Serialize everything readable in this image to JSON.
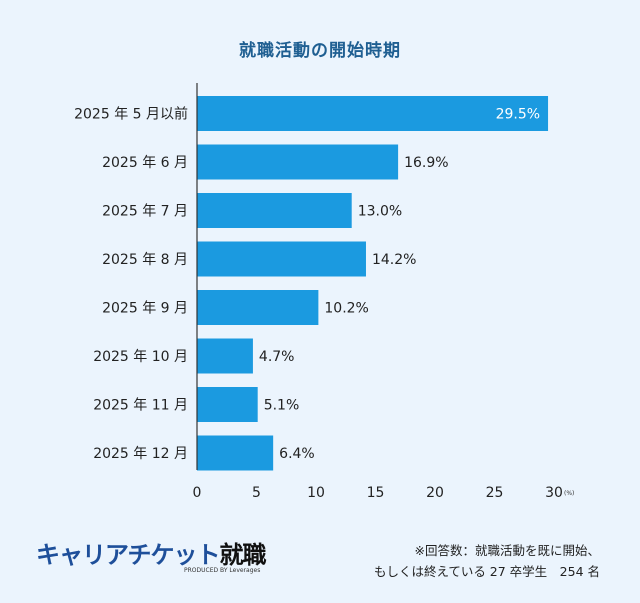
{
  "chart_data": {
    "type": "bar",
    "orientation": "horizontal",
    "title": "就職活動の開始時期",
    "categories": [
      "2025 年 5 月以前",
      "2025 年 6 月",
      "2025 年 7 月",
      "2025 年 8 月",
      "2025 年 9 月",
      "2025 年 10 月",
      "2025 年 11 月",
      "2025 年 12 月"
    ],
    "values": [
      29.5,
      16.9,
      13.0,
      14.2,
      10.2,
      4.7,
      5.1,
      6.4
    ],
    "data_labels": [
      "29.5%",
      "16.9%",
      "13.0%",
      "14.2%",
      "10.2%",
      "4.7%",
      "5.1%",
      "6.4%"
    ],
    "xlim": [
      0,
      30
    ],
    "xticks": [
      "0",
      "5",
      "10",
      "15",
      "20",
      "25",
      "30"
    ],
    "xunit": "(%)",
    "grid": false,
    "bar_color": "#1b9ae0"
  },
  "logo": {
    "main": "キャリアチケット",
    "accent": "就職",
    "sub": "PRODUCED BY Leverages"
  },
  "note": {
    "line1": "※回答数：就職活動を既に開始、",
    "line2": "もしくは終えている 27 卒学生　254 名"
  }
}
